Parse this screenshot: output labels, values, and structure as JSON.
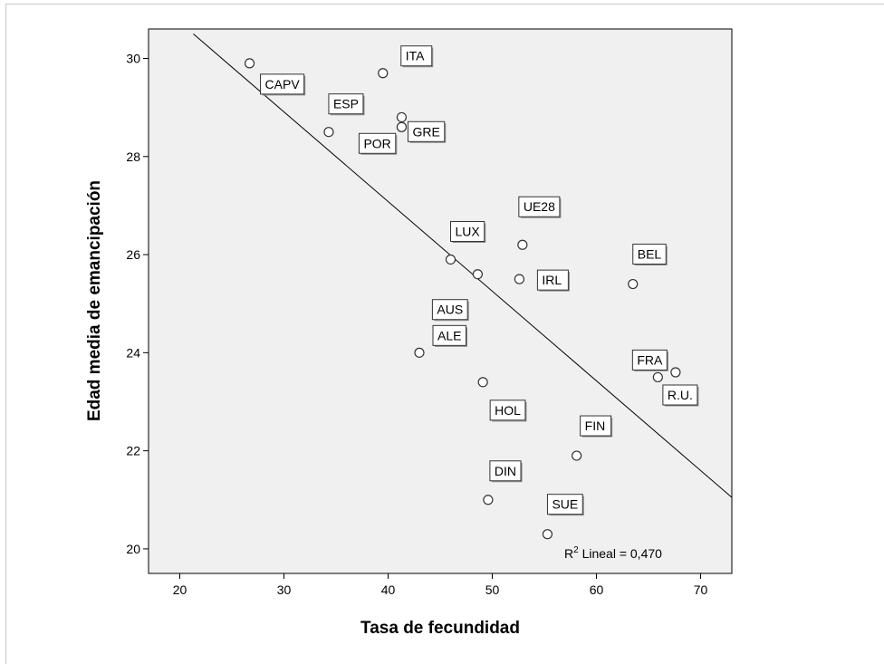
{
  "chart_data": {
    "type": "scatter",
    "xlabel": "Tasa de fecundidad",
    "ylabel": "Edad media de emancipación",
    "xlim": [
      17,
      73
    ],
    "ylim": [
      19.5,
      30.6
    ],
    "x_ticks": [
      20,
      30,
      40,
      50,
      60,
      70
    ],
    "y_ticks": [
      20,
      22,
      24,
      26,
      28,
      30
    ],
    "grid": false,
    "background_color": "#f0f0f0",
    "point_color": "#ffffff",
    "point_stroke": "#333333",
    "points": [
      {
        "label": "CAPV",
        "x": 26.7,
        "y": 29.9
      },
      {
        "label": "ITA",
        "x": 39.5,
        "y": 29.7
      },
      {
        "label": "ESP",
        "x": 34.3,
        "y": 28.5
      },
      {
        "label": "",
        "x": 41.3,
        "y": 28.8
      },
      {
        "label": "GRE",
        "x": 41.3,
        "y": 28.6
      },
      {
        "label": "POR",
        "x": 41.3,
        "y": 28.6
      },
      {
        "label": "LUX",
        "x": 46.0,
        "y": 25.9
      },
      {
        "label": "AUS",
        "x": 48.6,
        "y": 25.6
      },
      {
        "label": "UE28",
        "x": 52.9,
        "y": 26.2
      },
      {
        "label": "IRL",
        "x": 52.6,
        "y": 25.5
      },
      {
        "label": "BEL",
        "x": 63.5,
        "y": 25.4
      },
      {
        "label": "ALE",
        "x": 43.0,
        "y": 24.0
      },
      {
        "label": "HOL",
        "x": 49.1,
        "y": 23.4
      },
      {
        "label": "FRA",
        "x": 65.9,
        "y": 23.5
      },
      {
        "label": "R.U.",
        "x": 67.6,
        "y": 23.6
      },
      {
        "label": "FIN",
        "x": 58.1,
        "y": 21.9
      },
      {
        "label": "DIN",
        "x": 49.6,
        "y": 21.0
      },
      {
        "label": "SUE",
        "x": 55.3,
        "y": 20.3
      }
    ],
    "fit_line": {
      "type": "linear",
      "x": [
        21.3,
        73
      ],
      "y": [
        30.5,
        21.05
      ]
    },
    "annotation": {
      "r2_label": "R",
      "r2_sup": "2",
      "r2_text": " Lineal = 0,470"
    }
  }
}
